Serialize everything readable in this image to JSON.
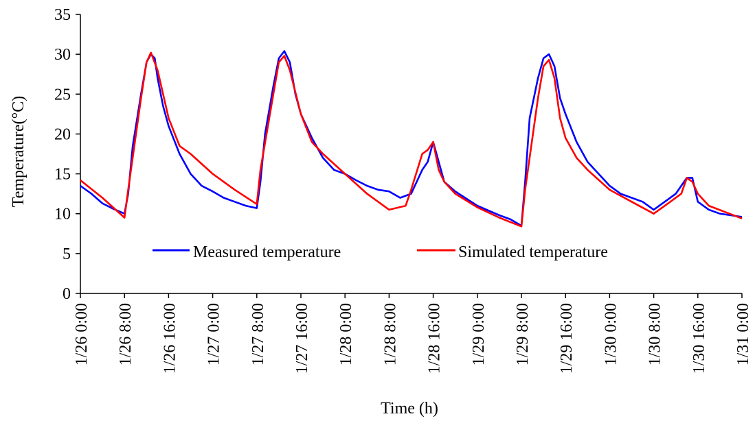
{
  "chart_data": {
    "type": "line",
    "title": "",
    "xlabel": "Time  (h)",
    "ylabel": "Temperature(°C)",
    "ylim": [
      0,
      35
    ],
    "yticks": [
      "0",
      "5",
      "10",
      "15",
      "20",
      "25",
      "30",
      "35"
    ],
    "xlim": [
      "1/26 0:00",
      "1/31 0:00"
    ],
    "xticks": [
      "1/26 0:00",
      "1/26 8:00",
      "1/26 16:00",
      "1/27 0:00",
      "1/27 8:00",
      "1/27 16:00",
      "1/28 0:00",
      "1/28 8:00",
      "1/28 16:00",
      "1/29 0:00",
      "1/29 8:00",
      "1/29 16:00",
      "1/30 0:00",
      "1/30 8:00",
      "1/30 16:00",
      "1/31 0:00"
    ],
    "grid": false,
    "legend_position": "center",
    "series": [
      {
        "name": "Measured temperature",
        "color": "#0000ff",
        "x": [
          "1/26 0:00",
          "1/26 2:00",
          "1/26 4:00",
          "1/26 6:00",
          "1/26 8:00",
          "1/26 8:40",
          "1/26 9:30",
          "1/26 11:00",
          "1/26 12:00",
          "1/26 12:48",
          "1/26 13:30",
          "1/26 14:00",
          "1/26 15:00",
          "1/26 16:00",
          "1/26 18:00",
          "1/26 20:00",
          "1/26 22:00",
          "1/27 0:00",
          "1/27 2:00",
          "1/27 4:00",
          "1/27 6:00",
          "1/27 8:00",
          "1/27 8:40",
          "1/27 9:30",
          "1/27 11:00",
          "1/27 12:00",
          "1/27 13:00",
          "1/27 14:00",
          "1/27 15:00",
          "1/27 16:00",
          "1/27 18:00",
          "1/27 20:00",
          "1/27 22:00",
          "1/28 0:00",
          "1/28 2:00",
          "1/28 4:00",
          "1/28 6:00",
          "1/28 8:00",
          "1/28 10:00",
          "1/28 12:00",
          "1/28 14:00",
          "1/28 15:00",
          "1/28 16:00",
          "1/28 17:00",
          "1/28 18:00",
          "1/28 20:00",
          "1/29 0:00",
          "1/29 4:00",
          "1/29 6:00",
          "1/29 8:00",
          "1/29 8:40",
          "1/29 9:30",
          "1/29 11:00",
          "1/29 12:00",
          "1/29 13:00",
          "1/29 14:00",
          "1/29 15:00",
          "1/29 16:00",
          "1/29 18:00",
          "1/29 20:00",
          "1/29 22:00",
          "1/30 0:00",
          "1/30 2:00",
          "1/30 4:00",
          "1/30 6:00",
          "1/30 8:00",
          "1/30 9:00",
          "1/30 10:00",
          "1/30 12:00",
          "1/30 13:00",
          "1/30 14:00",
          "1/30 15:00",
          "1/30 16:00",
          "1/30 18:00",
          "1/30 20:00",
          "1/30 22:00",
          "1/31 0:00"
        ],
        "y": [
          13.5,
          12.5,
          11.3,
          10.6,
          10.0,
          12.5,
          18.5,
          25.0,
          29.0,
          30.0,
          29.5,
          27.0,
          23.5,
          21.0,
          17.5,
          15.0,
          13.5,
          12.8,
          12.0,
          11.5,
          11.0,
          10.7,
          14.0,
          20.0,
          26.0,
          29.5,
          30.4,
          29.0,
          25.0,
          22.5,
          19.5,
          17.0,
          15.5,
          15.0,
          14.2,
          13.5,
          13.0,
          12.8,
          12.0,
          12.5,
          15.5,
          16.5,
          19.0,
          16.5,
          14.0,
          12.8,
          11.0,
          9.8,
          9.3,
          8.5,
          14.0,
          22.0,
          27.0,
          29.5,
          30.0,
          28.5,
          24.5,
          22.5,
          19.0,
          16.5,
          15.0,
          13.5,
          12.5,
          12.0,
          11.5,
          10.5,
          11.0,
          11.5,
          12.5,
          13.5,
          14.5,
          14.5,
          11.5,
          10.5,
          10.0,
          9.8,
          9.6
        ]
      },
      {
        "name": "Simulated temperature",
        "color": "#ff0000",
        "x": [
          "1/26 0:00",
          "1/26 4:00",
          "1/26 8:00",
          "1/26 8:40",
          "1/26 11:00",
          "1/26 12:00",
          "1/26 12:48",
          "1/26 14:00",
          "1/26 16:00",
          "1/26 18:00",
          "1/26 20:00",
          "1/27 0:00",
          "1/27 4:00",
          "1/27 8:00",
          "1/27 8:40",
          "1/27 11:00",
          "1/27 12:00",
          "1/27 13:00",
          "1/27 14:00",
          "1/27 16:00",
          "1/27 18:00",
          "1/27 20:00",
          "1/28 0:00",
          "1/28 4:00",
          "1/28 8:00",
          "1/28 11:00",
          "1/28 12:00",
          "1/28 14:00",
          "1/28 15:00",
          "1/28 16:00",
          "1/28 17:00",
          "1/28 18:00",
          "1/28 20:00",
          "1/29 0:00",
          "1/29 4:00",
          "1/29 8:00",
          "1/29 8:40",
          "1/29 11:00",
          "1/29 12:00",
          "1/29 13:00",
          "1/29 14:00",
          "1/29 15:00",
          "1/29 16:00",
          "1/29 18:00",
          "1/29 20:00",
          "1/30 0:00",
          "1/30 4:00",
          "1/30 8:00",
          "1/30 9:00",
          "1/30 11:00",
          "1/30 13:00",
          "1/30 14:00",
          "1/30 15:00",
          "1/30 16:00",
          "1/30 18:00",
          "1/31 0:00"
        ],
        "y": [
          14.2,
          12.0,
          9.5,
          13.0,
          24.5,
          29.0,
          30.2,
          28.0,
          22.0,
          18.5,
          17.5,
          15.0,
          13.0,
          11.2,
          15.5,
          25.0,
          29.0,
          29.8,
          28.0,
          22.5,
          19.0,
          17.5,
          15.0,
          12.5,
          10.5,
          11.0,
          13.0,
          17.5,
          18.0,
          19.0,
          15.5,
          14.0,
          12.5,
          10.8,
          9.5,
          8.4,
          13.0,
          24.5,
          28.5,
          29.3,
          27.0,
          22.0,
          19.5,
          17.0,
          15.5,
          13.0,
          11.5,
          10.0,
          10.5,
          11.5,
          12.5,
          14.5,
          14.0,
          12.5,
          11.0,
          9.4
        ]
      }
    ]
  }
}
